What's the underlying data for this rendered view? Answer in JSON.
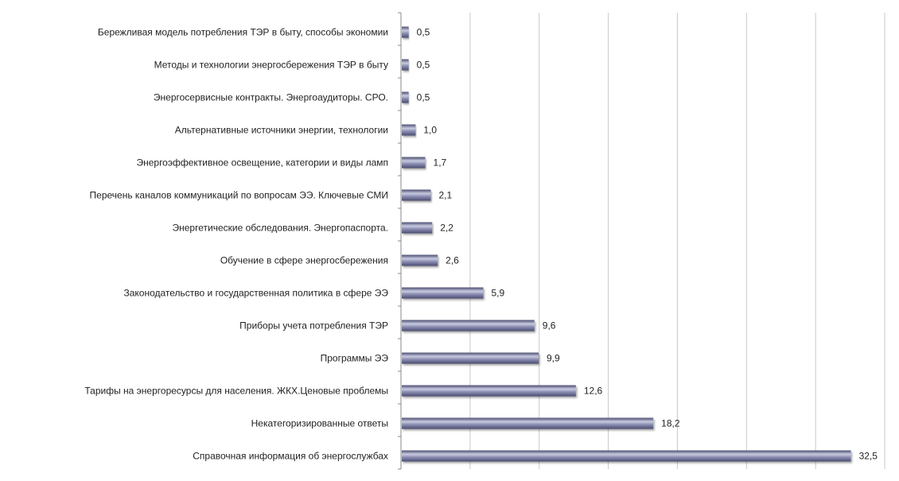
{
  "chart_data": {
    "type": "bar",
    "orientation": "horizontal",
    "categories": [
      "Бережливая модель потребления ТЭР в быту, способы экономии",
      "Методы и технологии энергосбережения ТЭР в быту",
      "Энергосервисные контракты. Энергоаудиторы. СРО.",
      "Альтернативные источники энергии, технологии",
      "Энергоэффективное освещение, категории и виды ламп",
      "Перечень каналов коммуникаций по вопросам ЭЭ. Ключевые СМИ",
      "Энергетические обследования. Энергопаспорта.",
      "Обучение в сфере энергосбережения",
      "Законодательство и государственная политика в сфере ЭЭ",
      "Приборы учета потребления ТЭР",
      "Программы ЭЭ",
      "Тарифы на энергоресурсы для населения. ЖКХ.Ценовые проблемы",
      "Некатегоризированные ответы",
      "Справочная информация об энергослужбах"
    ],
    "values": [
      0.5,
      0.5,
      0.5,
      1.0,
      1.7,
      2.1,
      2.2,
      2.6,
      5.9,
      9.6,
      9.9,
      12.6,
      18.2,
      32.5
    ],
    "value_labels": [
      "0,5",
      "0,5",
      "0,5",
      "1,0",
      "1,7",
      "2,1",
      "2,2",
      "2,6",
      "5,9",
      "9,6",
      "9,9",
      "12,6",
      "18,2",
      "32,5"
    ],
    "x_ticks": [
      "0,0",
      "5,0",
      "10,0",
      "15,0",
      "20,0",
      "25,0",
      "30,0",
      "35,0"
    ],
    "xlim": [
      0,
      35
    ],
    "grid": "vertical",
    "legend": "none",
    "title": "",
    "xlabel": "",
    "ylabel": "",
    "colors": {
      "bar_light": "#c9cbe0",
      "bar_mid": "#8c8fb3",
      "bar_dark": "#4a4d70",
      "grid": "#c8c8c8",
      "axis": "#8a8a8a"
    }
  }
}
